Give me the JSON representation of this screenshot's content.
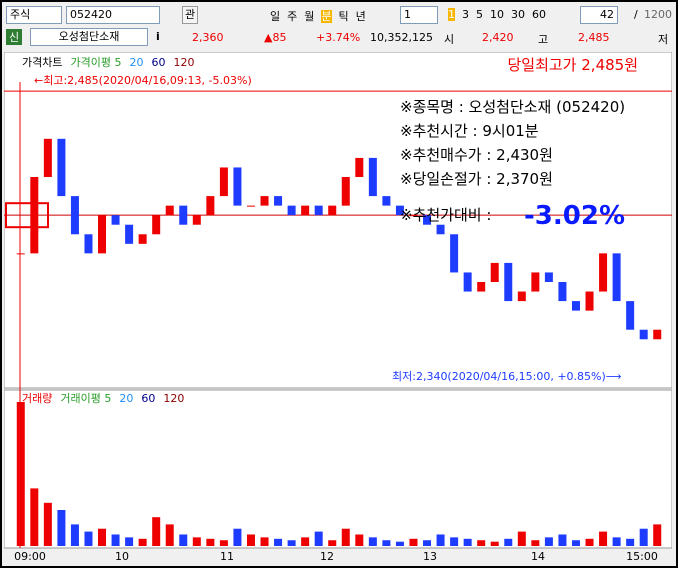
{
  "toolbar": {
    "market": "주식",
    "code": "052420",
    "watch": "관",
    "periods": [
      "일",
      "주",
      "월",
      "분",
      "틱",
      "년"
    ],
    "interval": "1",
    "minutes": [
      "1",
      "3",
      "5",
      "10",
      "30",
      "60"
    ],
    "count": "42",
    "separator": "/",
    "max": "1200"
  },
  "quote": {
    "badge": "신",
    "name": "오성첨단소재",
    "info": "i",
    "price": "2,360",
    "change": "▲85",
    "rate": "+3.74%",
    "volume": "10,352,125",
    "open_label": "시",
    "open": "2,420",
    "high_label": "고",
    "high": "2,485",
    "low_label": "저"
  },
  "price_panel": {
    "legend": [
      "가격차트",
      "가격이평 5",
      "20",
      "60",
      "120"
    ],
    "high_note": "←최고:2,485(2020/04/16,09:13, -5.03%)",
    "day_high": "당일최고가 2,485원",
    "info": [
      "※종목명 : 오성첨단소재 (052420)",
      "※추천시간 : 9시01분",
      "※추천매수가 : 2,430원",
      "※당일손절가 : 2,370원",
      "※추천가대비 :"
    ],
    "diff": "-3.02%",
    "low_note": "최저:2,340(2020/04/16,15:00, +0.85%)⟶",
    "ylim": [
      2330,
      2495
    ],
    "high_line": 2485,
    "ref_line": 2420,
    "close": [
      2400,
      2440,
      2460,
      2430,
      2410,
      2400,
      2420,
      2415,
      2405,
      2410,
      2420,
      2425,
      2415,
      2420,
      2430,
      2445,
      2425,
      2425,
      2430,
      2425,
      2420,
      2425,
      2420,
      2425,
      2440,
      2450,
      2430,
      2425,
      2420,
      2420,
      2415,
      2410,
      2390,
      2380,
      2385,
      2395,
      2375,
      2380,
      2390,
      2385,
      2375,
      2370,
      2380,
      2400,
      2375,
      2360,
      2355,
      2360
    ]
  },
  "volume_panel": {
    "legend": [
      "거래량",
      "거래이평 5",
      "20",
      "60",
      "120"
    ],
    "ylim": [
      0,
      100
    ],
    "values": [
      100,
      40,
      30,
      25,
      15,
      10,
      12,
      8,
      6,
      5,
      20,
      15,
      8,
      6,
      5,
      4,
      12,
      8,
      6,
      5,
      4,
      6,
      10,
      4,
      12,
      8,
      6,
      4,
      3,
      5,
      4,
      8,
      6,
      5,
      4,
      3,
      5,
      10,
      4,
      6,
      8,
      4,
      5,
      10,
      6,
      5,
      12,
      15
    ]
  },
  "x_labels": [
    "09:00",
    "10",
    "11",
    "12",
    "13",
    "14",
    "15:00"
  ]
}
